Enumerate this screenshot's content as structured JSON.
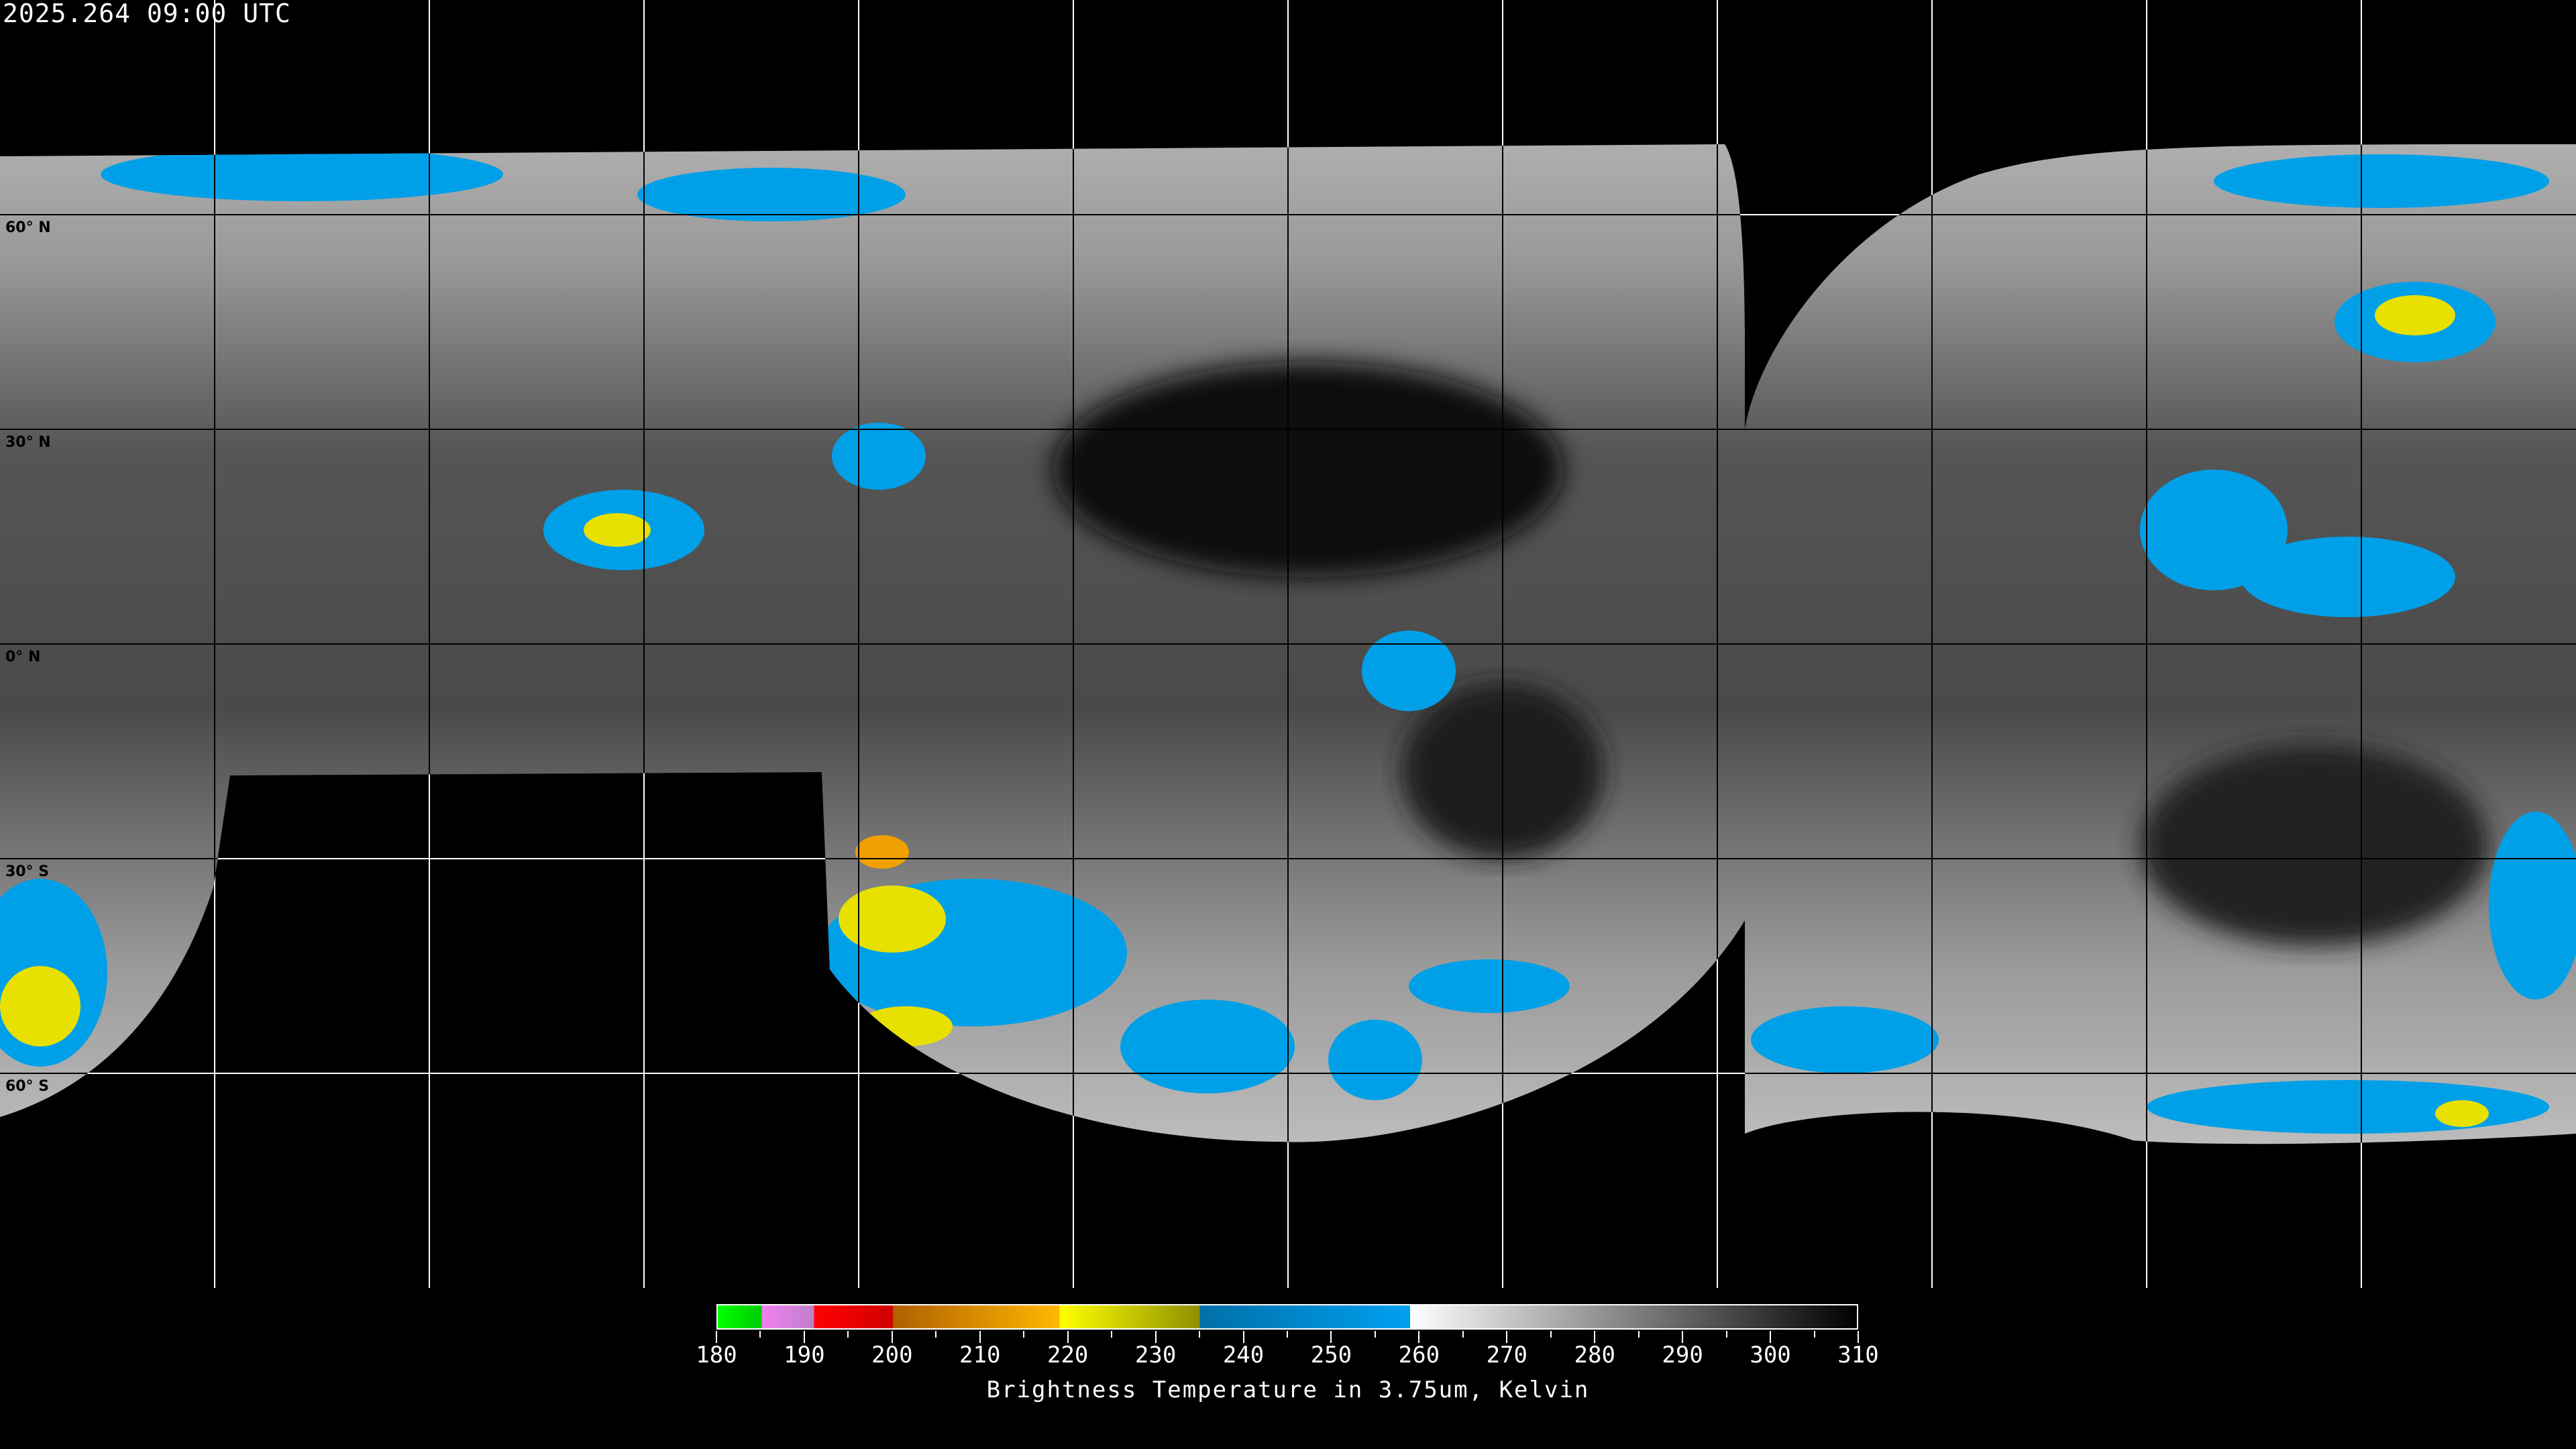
{
  "timestamp": "2025.264 09:00 UTC",
  "map": {
    "projection": "equirectangular",
    "lon_range": [
      -180,
      180
    ],
    "lat_range": [
      -90,
      90
    ],
    "grid_spacing_deg": 30,
    "lat_labels": [
      "60° N",
      "30° N",
      "0° N",
      "30° S",
      "60° S"
    ],
    "lat_label_values": [
      60,
      30,
      0,
      -30,
      -60
    ]
  },
  "colorbar": {
    "title": "Brightness Temperature in 3.75um, Kelvin",
    "min": 180,
    "max": 310,
    "tick_labels": [
      "180",
      "190",
      "200",
      "210",
      "220",
      "230",
      "240",
      "250",
      "260",
      "270",
      "280",
      "290",
      "300",
      "310"
    ],
    "segments": [
      {
        "from": 180,
        "to": 185,
        "colors": [
          "#00ff00",
          "#00cc00"
        ]
      },
      {
        "from": 185,
        "to": 191,
        "colors": [
          "#f080f0",
          "#c080c8"
        ]
      },
      {
        "from": 191,
        "to": 200,
        "colors": [
          "#ff0000",
          "#d00000"
        ]
      },
      {
        "from": 200,
        "to": 219,
        "colors": [
          "#b06000",
          "#ffb800"
        ]
      },
      {
        "from": 219,
        "to": 235,
        "colors": [
          "#ffff00",
          "#909000"
        ]
      },
      {
        "from": 235,
        "to": 259,
        "colors": [
          "#0070a8",
          "#00a0f0"
        ]
      },
      {
        "from": 259,
        "to": 310,
        "colors": [
          "#ffffff",
          "#000000"
        ]
      }
    ]
  },
  "colors": {
    "cold_cloud_blue": "#00a0e8",
    "very_cold_yellow": "#e8e000",
    "coldest_orange": "#f0a000"
  }
}
